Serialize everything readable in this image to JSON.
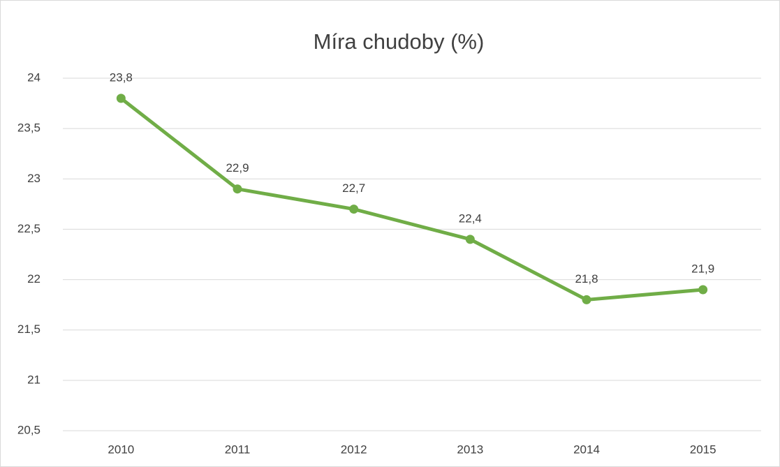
{
  "chart_data": {
    "type": "line",
    "title": "Míra chudoby (%)",
    "categories": [
      "2010",
      "2011",
      "2012",
      "2013",
      "2014",
      "2015"
    ],
    "series": [
      {
        "name": "Míra chudoby",
        "color": "#70ad47",
        "values": [
          23.8,
          22.9,
          22.7,
          22.4,
          21.8,
          21.9
        ],
        "value_labels": [
          "23,8",
          "22,9",
          "22,7",
          "22,4",
          "21,8",
          "21,9"
        ]
      }
    ],
    "ylim": [
      20.5,
      24
    ],
    "yticks": [
      {
        "value": 20.5,
        "label": "20,5"
      },
      21,
      {
        "value": 21.5,
        "label": "21,5"
      },
      22,
      {
        "value": 22.5,
        "label": "22,5"
      },
      23,
      {
        "value": 23.5,
        "label": "23,5"
      },
      24
    ],
    "grid": true
  }
}
